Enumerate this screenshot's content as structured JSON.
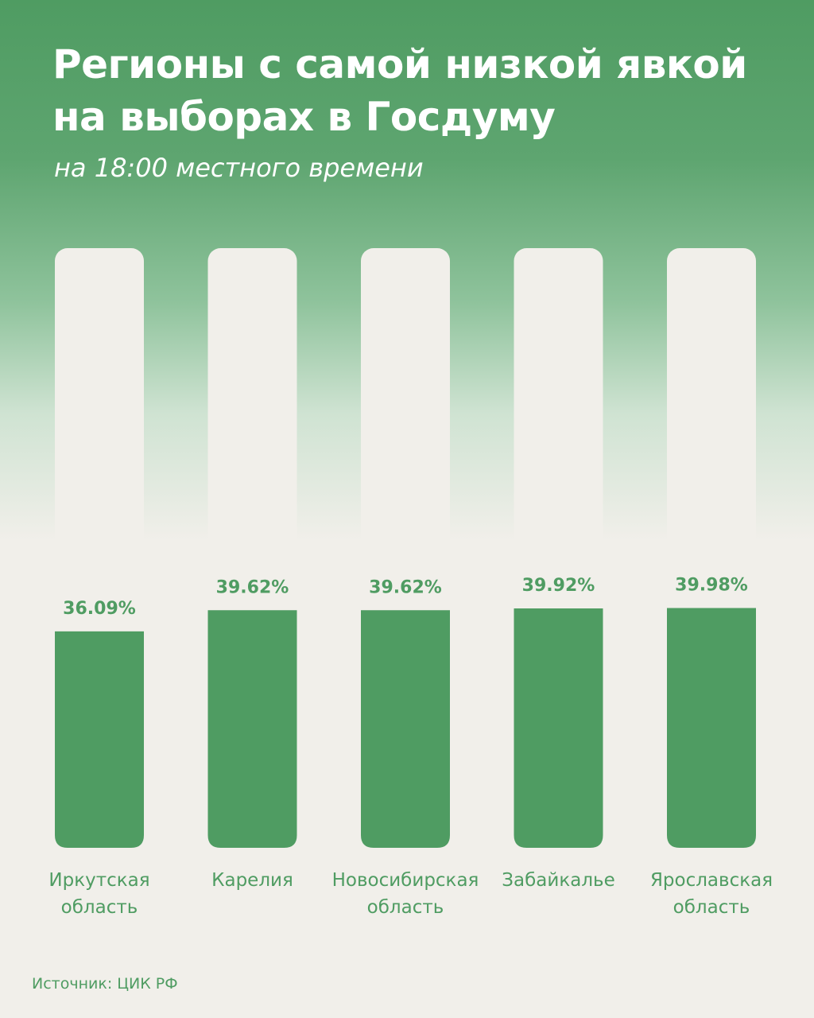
{
  "chart_data": {
    "type": "bar",
    "title": "Регионы с самой низкой явкой на выборах в Госдуму",
    "subtitle": "на 18:00 местного времени",
    "categories": [
      "Иркутская\nобласть",
      "Карелия",
      "Новосибирская\nобласть",
      "Забайкалье",
      "Ярославская\nобласть"
    ],
    "values": [
      36.09,
      39.62,
      39.62,
      39.92,
      39.98
    ],
    "value_labels": [
      "36.09%",
      "39.62%",
      "39.62%",
      "39.92%",
      "39.98%"
    ],
    "color": "#4f9c62",
    "ylim": [
      0,
      100
    ],
    "source": "Источник: ЦИК РФ"
  }
}
